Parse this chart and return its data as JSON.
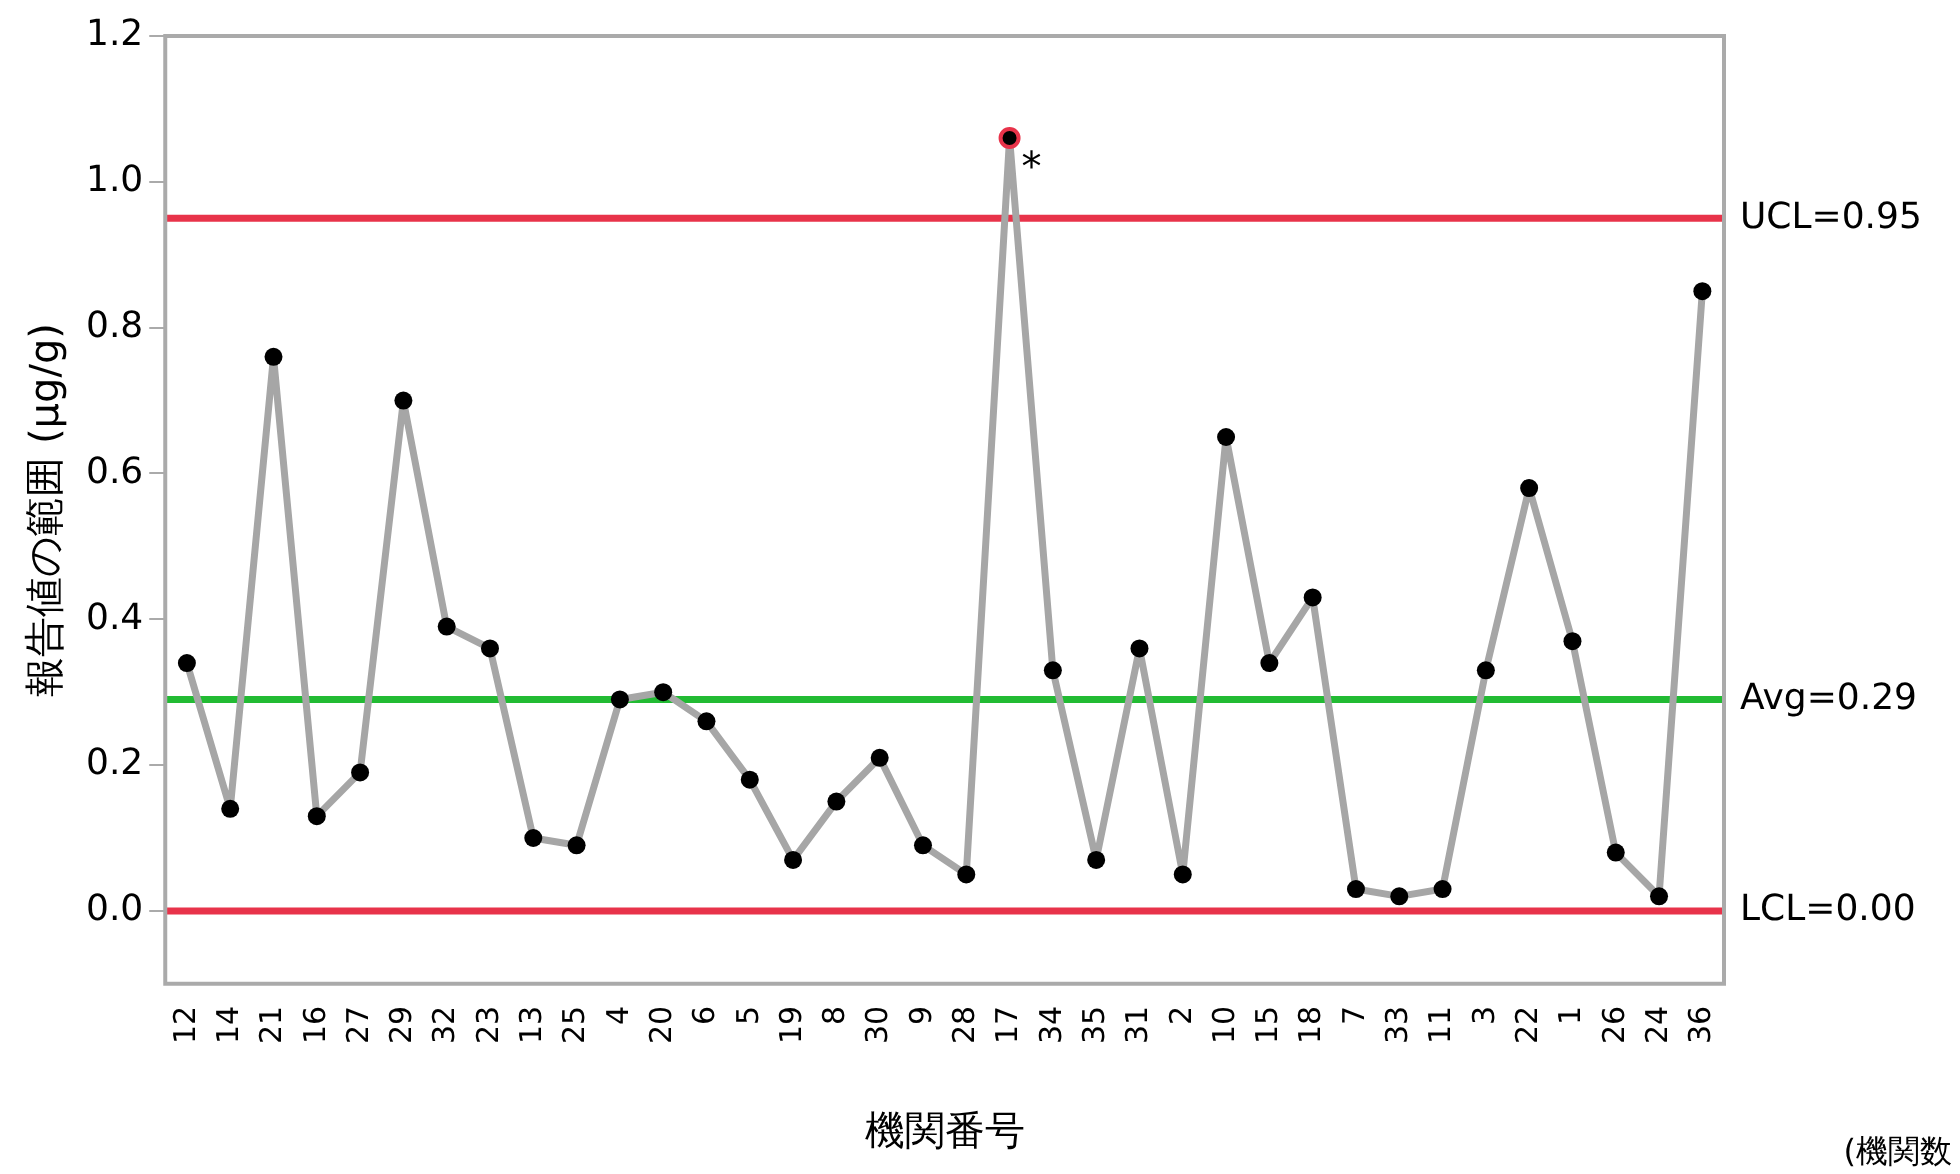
{
  "chart_data": {
    "type": "line",
    "xlabel": "機関番号",
    "ylabel": "報告値の範囲 (µg/g)",
    "categories": [
      "12",
      "14",
      "21",
      "16",
      "27",
      "29",
      "32",
      "23",
      "13",
      "25",
      "4",
      "20",
      "6",
      "5",
      "19",
      "8",
      "30",
      "9",
      "28",
      "17",
      "34",
      "35",
      "31",
      "2",
      "10",
      "15",
      "18",
      "7",
      "33",
      "11",
      "3",
      "22",
      "1",
      "26",
      "24",
      "36"
    ],
    "series": [
      {
        "color": "#a6a6a6",
        "values": [
          0.34,
          0.14,
          0.76,
          0.13,
          0.19,
          0.7,
          0.39,
          0.36,
          0.1,
          0.09,
          0.29,
          0.3,
          0.26,
          0.18,
          0.07,
          0.15,
          0.21,
          0.09,
          0.05,
          1.06,
          0.33,
          0.07,
          0.36,
          0.05,
          0.65,
          0.34,
          0.43,
          0.03,
          0.02,
          0.03,
          0.33,
          0.58,
          0.37,
          0.08,
          0.02,
          0.85
        ]
      }
    ],
    "marker": "circle",
    "line_style": "solid",
    "grid": false,
    "legend": false,
    "ylim": [
      -0.1,
      1.2
    ],
    "yticks": [
      {
        "value": 0,
        "label": "0.0"
      },
      {
        "value": 0.2,
        "label": "0.2"
      },
      {
        "value": 0.4,
        "label": "0.4"
      },
      {
        "value": 0.6,
        "label": "0.6"
      },
      {
        "value": 0.8,
        "label": "0.8"
      },
      {
        "value": 1,
        "label": "1.0"
      },
      {
        "value": 1.2,
        "label": "1.2"
      }
    ],
    "ref_lines": [
      {
        "axis": "y",
        "value": 0.95,
        "label": "UCL=0.95",
        "color": "#e8334a"
      },
      {
        "axis": "y",
        "value": 0.29,
        "label": "Avg=0.29",
        "color": "#22bb33"
      },
      {
        "axis": "y",
        "value": 0,
        "label": "LCL=0.00",
        "color": "#e8334a"
      }
    ],
    "annotations": [
      {
        "text": "*",
        "x": "17",
        "y": 1.06
      },
      "(機関数"
    ]
  }
}
